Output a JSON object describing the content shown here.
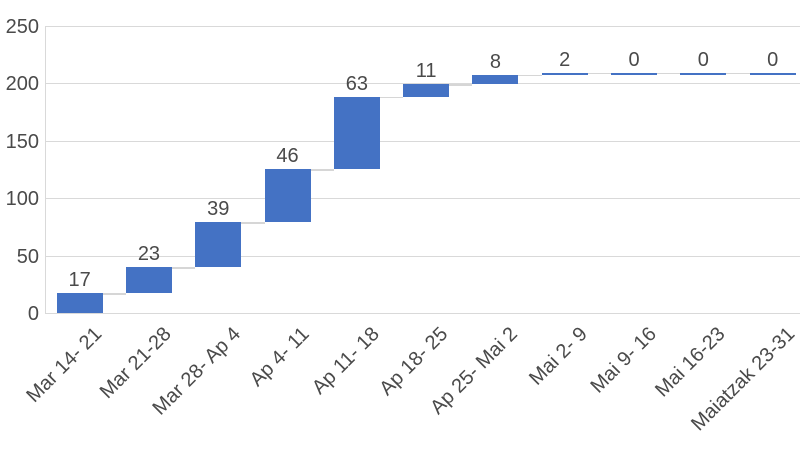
{
  "chart_data": {
    "type": "bar",
    "subtype": "waterfall",
    "title": "",
    "xlabel": "",
    "ylabel": "",
    "categories": [
      "Mar 14- 21",
      "Mar 21-28",
      "Mar 28- Ap 4",
      "Ap 4- 11",
      "Ap 11- 18",
      "Ap 18- 25",
      "Ap 25- Mai 2",
      "Mai 2- 9",
      "Mai 9- 16",
      "Mai 16-23",
      "Maiatzak 23-31"
    ],
    "values": [
      17,
      23,
      39,
      46,
      63,
      11,
      8,
      2,
      0,
      0,
      0
    ],
    "cumulative": [
      17,
      40,
      79,
      125,
      188,
      199,
      207,
      209,
      209,
      209,
      209
    ],
    "data_labels": [
      "17",
      "23",
      "39",
      "46",
      "63",
      "11",
      "8",
      "2",
      "0",
      "0",
      "0"
    ],
    "y_ticks": [
      0,
      50,
      100,
      150,
      200,
      250
    ],
    "ylim": [
      0,
      250
    ],
    "grid": "horizontal",
    "legend": "none",
    "colors": {
      "bar": "#4472C4",
      "gridline": "#D9D9D9",
      "connector": "#D6D6D6",
      "axis_line": "#D9D9D9",
      "text": "#4a4a4a",
      "background": "#FFFFFF"
    }
  }
}
